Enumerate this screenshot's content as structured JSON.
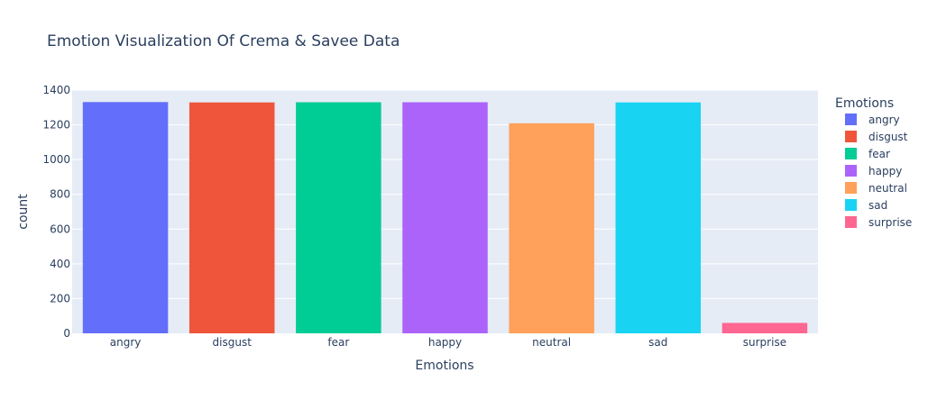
{
  "chart_data": {
    "type": "bar",
    "title": "Emotion Visualization Of Crema & Savee Data",
    "xlabel": "Emotions",
    "ylabel": "count",
    "categories": [
      "angry",
      "disgust",
      "fear",
      "happy",
      "neutral",
      "sad",
      "surprise"
    ],
    "values": [
      1331,
      1329,
      1330,
      1330,
      1209,
      1329,
      60
    ],
    "colors": [
      "#636efa",
      "#ef553b",
      "#00cc96",
      "#ab63fa",
      "#ffa15a",
      "#19d3f3",
      "#ff6692"
    ],
    "ylim": [
      0,
      1400
    ],
    "yticks": [
      0,
      200,
      400,
      600,
      800,
      1000,
      1200,
      1400
    ],
    "ytick_labels": [
      "0",
      "200",
      "400",
      "600",
      "800",
      "1000",
      "1200",
      "1400"
    ],
    "grid": true,
    "plot_background": "#e5ecf6",
    "legend": {
      "title": "Emotions",
      "placement": "right",
      "entries": [
        "angry",
        "disgust",
        "fear",
        "happy",
        "neutral",
        "sad",
        "surprise"
      ]
    }
  }
}
